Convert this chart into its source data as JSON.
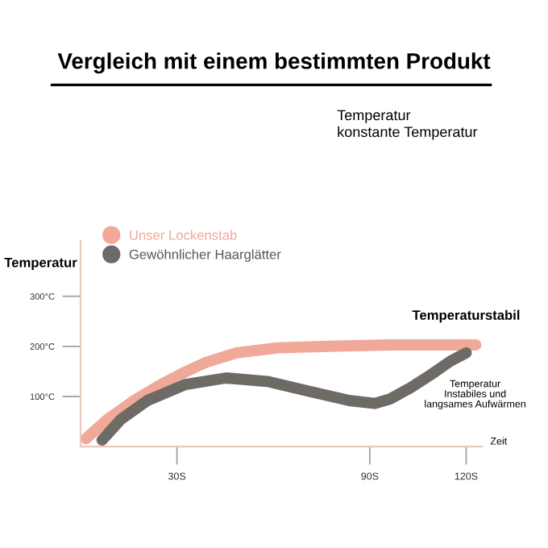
{
  "chart_data": {
    "type": "line",
    "title": "Vergleich mit einem bestimmten Produkt",
    "xlabel": "Zeit",
    "ylabel": "Temperatur",
    "annotations": [
      "Temperatur\nkonstante Temperatur",
      {
        "text": "Temperaturstabil",
        "x": 120,
        "y": 203
      },
      {
        "text": "Temperatur\nInstabiles und\nlangsames Aufwärmen",
        "x": 120,
        "y": 187
      }
    ],
    "x": [
      1.7,
      8.3,
      16.7,
      25,
      32.6,
      39,
      48.5,
      61.3,
      77,
      96.3,
      123
    ],
    "series": [
      {
        "name": "Unser Lockenstab",
        "color": "#f0a898",
        "values": [
          16,
          54,
          92,
          124,
          149,
          168,
          187,
          197,
          200,
          203,
          203
        ]
      },
      {
        "name": "Gewöhnlicher Haarglätter",
        "color": "#6e6a66",
        "x": [
          6.7,
          12.5,
          20.8,
          32.6,
          45.3,
          58.1,
          70.8,
          83.6,
          91.6,
          96.3,
          102.6,
          108.9,
          115.2,
          120
        ],
        "values": [
          13,
          54,
          92,
          124,
          137,
          130,
          111,
          92,
          86,
          95,
          117,
          143,
          171,
          187
        ]
      }
    ],
    "xlim": [
      0,
      125
    ],
    "ylim": [
      0,
      410
    ],
    "xticks": [
      {
        "value": 30,
        "label": "30S"
      },
      {
        "value": 90,
        "label": "90S"
      },
      {
        "value": 120,
        "label": "120S"
      }
    ],
    "yticks": [
      {
        "value": 100,
        "label": "100°C"
      },
      {
        "value": 200,
        "label": "200°C"
      },
      {
        "value": 300,
        "label": "300°C"
      }
    ],
    "legend": "top left",
    "grid": false,
    "marker": "none",
    "line_style": "solid"
  }
}
